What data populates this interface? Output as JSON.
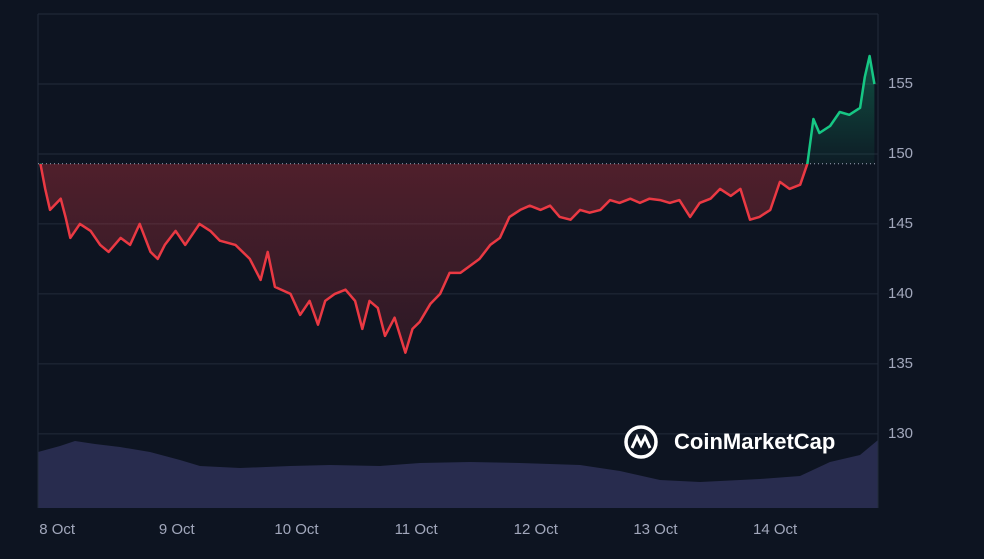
{
  "chart_data": {
    "type": "line",
    "watermark": "CoinMarketCap",
    "baseline": 149.3,
    "color_up": "#16c784",
    "color_down": "#ea3943",
    "xlim": [
      -0.16,
      6.86
    ],
    "xticks": [
      {
        "value": 0,
        "label": "8 Oct"
      },
      {
        "value": 1,
        "label": "9 Oct"
      },
      {
        "value": 2,
        "label": "10 Oct"
      },
      {
        "value": 3,
        "label": "11 Oct"
      },
      {
        "value": 4,
        "label": "12 Oct"
      },
      {
        "value": 5,
        "label": "13 Oct"
      },
      {
        "value": 6,
        "label": "14 Oct"
      }
    ],
    "ylim": [
      124.7,
      160
    ],
    "yticks": [
      130,
      135,
      140,
      145,
      150,
      155
    ],
    "grid": true,
    "x": [
      -0.14,
      -0.1,
      -0.06,
      0.03,
      0.07,
      0.11,
      0.19,
      0.28,
      0.36,
      0.43,
      0.53,
      0.61,
      0.69,
      0.78,
      0.84,
      0.9,
      0.99,
      1.07,
      1.19,
      1.28,
      1.36,
      1.49,
      1.61,
      1.7,
      1.76,
      1.82,
      1.95,
      2.03,
      2.11,
      2.18,
      2.24,
      2.32,
      2.41,
      2.49,
      2.55,
      2.61,
      2.68,
      2.74,
      2.82,
      2.91,
      2.97,
      3.03,
      3.12,
      3.2,
      3.28,
      3.37,
      3.45,
      3.53,
      3.62,
      3.7,
      3.78,
      3.87,
      3.95,
      4.04,
      4.12,
      4.2,
      4.29,
      4.37,
      4.45,
      4.54,
      4.62,
      4.7,
      4.79,
      4.87,
      4.95,
      5.04,
      5.12,
      5.2,
      5.29,
      5.37,
      5.46,
      5.54,
      5.63,
      5.71,
      5.79,
      5.87,
      5.96,
      6.04,
      6.12,
      6.21,
      6.27,
      6.32,
      6.37,
      6.46,
      6.54,
      6.62,
      6.71,
      6.75,
      6.79,
      6.83
    ],
    "values": [
      149.3,
      147.5,
      146,
      146.8,
      145.5,
      144,
      145,
      144.5,
      143.5,
      143,
      144,
      143.5,
      145,
      143,
      142.5,
      143.5,
      144.5,
      143.5,
      145,
      144.5,
      143.8,
      143.5,
      142.5,
      141,
      143,
      140.5,
      140,
      138.5,
      139.5,
      137.8,
      139.5,
      140,
      140.3,
      139.5,
      137.5,
      139.5,
      139,
      137,
      138.3,
      135.8,
      137.5,
      138,
      139.3,
      140,
      141.5,
      141.5,
      142,
      142.5,
      143.5,
      144,
      145.5,
      146,
      146.3,
      146,
      146.3,
      145.5,
      145.3,
      146,
      145.8,
      146,
      146.7,
      146.5,
      146.8,
      146.5,
      146.8,
      146.7,
      146.5,
      146.7,
      145.5,
      146.5,
      146.8,
      147.5,
      147,
      147.5,
      145.3,
      145.5,
      146,
      148,
      147.5,
      147.8,
      149.3,
      152.5,
      151.5,
      152,
      153,
      152.8,
      153.3,
      155.5,
      157,
      155
    ]
  }
}
